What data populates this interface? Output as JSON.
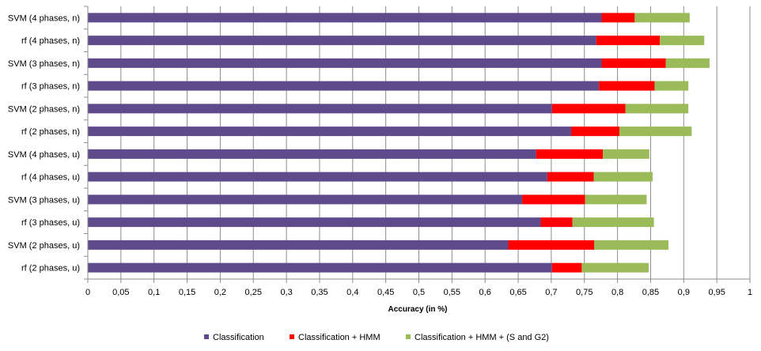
{
  "chart_data": {
    "type": "bar",
    "orientation": "horizontal",
    "stacked": true,
    "title": "",
    "xlabel": "Accuracy  (in %)",
    "ylabel": "",
    "xlim": [
      0,
      1
    ],
    "x_ticks": [
      0,
      0.05,
      0.1,
      0.15,
      0.2,
      0.25,
      0.3,
      0.35,
      0.4,
      0.45,
      0.5,
      0.55,
      0.6,
      0.65,
      0.7,
      0.75,
      0.8,
      0.85,
      0.9,
      0.95,
      1
    ],
    "x_tick_labels": [
      "0",
      "0,05",
      "0,1",
      "0,15",
      "0,2",
      "0,25",
      "0,3",
      "0,35",
      "0,4",
      "0,45",
      "0,5",
      "0,55",
      "0,6",
      "0,65",
      "0,7",
      "0,75",
      "0,8",
      "0,85",
      "0,9",
      "0,95",
      "1"
    ],
    "grid": "vertical",
    "legend_position": "bottom",
    "categories": [
      "SVM (4 phases, n)",
      "rf (4 phases, n)",
      "SVM (3 phases, n)",
      "rf (3 phases, n)",
      "SVM (2 phases, n)",
      "rf (2 phases, n)",
      "SVM (4 phases, u)",
      "rf (4 phases, u)",
      "SVM (3 phases, u)",
      "rf (3 phases, u)",
      "SVM (2 phases, u)",
      "rf (2 phases, u)"
    ],
    "series": [
      {
        "name": "Classification",
        "color": "#5f4b8b",
        "values": [
          0.776,
          0.768,
          0.776,
          0.772,
          0.701,
          0.73,
          0.677,
          0.694,
          0.656,
          0.684,
          0.635,
          0.701
        ]
      },
      {
        "name": "Classification + HMM",
        "color": "#ff0000",
        "values": [
          0.05,
          0.096,
          0.097,
          0.084,
          0.111,
          0.073,
          0.101,
          0.07,
          0.095,
          0.048,
          0.13,
          0.045
        ]
      },
      {
        "name": "Classification + HMM + (S and G2)",
        "color": "#9bbb59",
        "values": [
          0.083,
          0.067,
          0.066,
          0.051,
          0.095,
          0.109,
          0.07,
          0.089,
          0.093,
          0.123,
          0.112,
          0.101
        ]
      }
    ]
  }
}
